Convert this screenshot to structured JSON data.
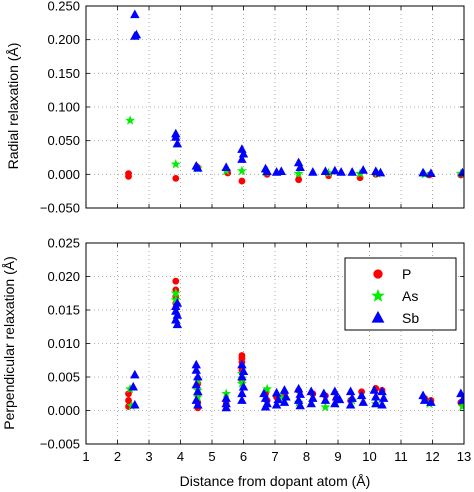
{
  "chart_data": [
    {
      "type": "scatter",
      "title": "",
      "xlabel": "",
      "ylabel": "Radial relaxation (Å)",
      "xlim": [
        1,
        13
      ],
      "ylim": [
        -0.05,
        0.25
      ],
      "xticks": [
        1,
        2,
        3,
        4,
        5,
        6,
        7,
        8,
        9,
        10,
        11,
        12,
        13
      ],
      "yticks": [
        "−0.050",
        "0.000",
        "0.050",
        "0.100",
        "0.150",
        "0.200",
        "0.250"
      ],
      "ytick_values": [
        -0.05,
        0.0,
        0.05,
        0.1,
        0.15,
        0.2,
        0.25
      ],
      "grid": true,
      "series": [
        {
          "name": "P",
          "marker": "circle",
          "color": "#ff0000",
          "points": [
            [
              2.35,
              0.001
            ],
            [
              2.35,
              -0.003
            ],
            [
              3.85,
              -0.006
            ],
            [
              4.55,
              0.01
            ],
            [
              5.5,
              0.002
            ],
            [
              5.95,
              -0.01
            ],
            [
              6.75,
              0.0
            ],
            [
              7.75,
              -0.008
            ],
            [
              8.7,
              -0.002
            ],
            [
              9.7,
              -0.005
            ],
            [
              10.2,
              0.0
            ],
            [
              11.9,
              -0.001
            ],
            [
              12.9,
              -0.001
            ]
          ]
        },
        {
          "name": "As",
          "marker": "star",
          "color": "#00ee00",
          "points": [
            [
              2.4,
              0.08
            ],
            [
              3.85,
              0.015
            ],
            [
              4.55,
              0.009
            ],
            [
              5.45,
              0.005
            ],
            [
              5.95,
              0.005
            ],
            [
              6.7,
              0.003
            ],
            [
              7.75,
              0.001
            ],
            [
              8.7,
              0.002
            ],
            [
              9.7,
              0.001
            ],
            [
              10.25,
              0.001
            ],
            [
              11.75,
              0.0
            ],
            [
              12.9,
              0.001
            ]
          ]
        },
        {
          "name": "Sb",
          "marker": "triangle",
          "color": "#0000ff",
          "points": [
            [
              2.55,
              0.237
            ],
            [
              2.6,
              0.207
            ],
            [
              2.55,
              0.205
            ],
            [
              3.85,
              0.06
            ],
            [
              3.85,
              0.055
            ],
            [
              3.9,
              0.045
            ],
            [
              4.5,
              0.012
            ],
            [
              4.55,
              0.009
            ],
            [
              5.45,
              0.01
            ],
            [
              5.95,
              0.037
            ],
            [
              6.0,
              0.03
            ],
            [
              5.95,
              0.022
            ],
            [
              6.7,
              0.008
            ],
            [
              6.75,
              0.004
            ],
            [
              7.05,
              0.003
            ],
            [
              7.2,
              0.004
            ],
            [
              7.75,
              0.017
            ],
            [
              7.8,
              0.01
            ],
            [
              8.2,
              0.003
            ],
            [
              8.6,
              0.004
            ],
            [
              8.9,
              0.005
            ],
            [
              9.1,
              0.003
            ],
            [
              9.45,
              0.003
            ],
            [
              9.8,
              0.006
            ],
            [
              10.2,
              0.004
            ],
            [
              10.35,
              0.002
            ],
            [
              11.7,
              0.002
            ],
            [
              11.95,
              0.001
            ],
            [
              12.95,
              0.002
            ]
          ]
        }
      ]
    },
    {
      "type": "scatter",
      "title": "",
      "xlabel": "Distance from dopant atom (Å)",
      "ylabel": "Perpendicular relaxation (Å)",
      "xlim": [
        1,
        13
      ],
      "ylim": [
        -0.005,
        0.025
      ],
      "xticks": [
        1,
        2,
        3,
        4,
        5,
        6,
        7,
        8,
        9,
        10,
        11,
        12,
        13
      ],
      "yticks": [
        "−0.005",
        "0.000",
        "0.005",
        "0.010",
        "0.015",
        "0.020",
        "0.025"
      ],
      "ytick_values": [
        -0.005,
        0.0,
        0.005,
        0.01,
        0.015,
        0.02,
        0.025
      ],
      "grid": true,
      "legend": {
        "position": "top-right",
        "entries": [
          "P",
          "As",
          "Sb"
        ]
      },
      "series": [
        {
          "name": "P",
          "marker": "circle",
          "color": "#ff0000",
          "points": [
            [
              2.35,
              0.0025
            ],
            [
              2.35,
              0.0015
            ],
            [
              2.35,
              0.0006
            ],
            [
              3.85,
              0.0193
            ],
            [
              3.85,
              0.018
            ],
            [
              3.85,
              0.017
            ],
            [
              3.85,
              0.016
            ],
            [
              4.55,
              0.004
            ],
            [
              4.55,
              0.0025
            ],
            [
              4.55,
              0.0012
            ],
            [
              4.55,
              0.0004
            ],
            [
              5.45,
              0.001
            ],
            [
              5.95,
              0.0082
            ],
            [
              5.95,
              0.0078
            ],
            [
              5.95,
              0.0072
            ],
            [
              5.95,
              0.006
            ],
            [
              5.95,
              0.0045
            ],
            [
              6.7,
              0.0025
            ],
            [
              6.75,
              0.0015
            ],
            [
              7.05,
              0.002
            ],
            [
              7.3,
              0.0025
            ],
            [
              7.75,
              0.003
            ],
            [
              8.2,
              0.0025
            ],
            [
              8.6,
              0.0022
            ],
            [
              8.95,
              0.0018
            ],
            [
              9.4,
              0.0015
            ],
            [
              9.75,
              0.0028
            ],
            [
              10.2,
              0.0033
            ],
            [
              10.4,
              0.003
            ],
            [
              11.75,
              0.0018
            ],
            [
              11.95,
              0.0015
            ],
            [
              12.9,
              0.0012
            ]
          ]
        },
        {
          "name": "As",
          "marker": "star",
          "color": "#00ee00",
          "points": [
            [
              2.4,
              0.0032
            ],
            [
              2.45,
              0.0007
            ],
            [
              3.85,
              0.0175
            ],
            [
              3.85,
              0.0165
            ],
            [
              4.55,
              0.0045
            ],
            [
              4.55,
              0.003
            ],
            [
              4.55,
              0.002
            ],
            [
              5.45,
              0.0025
            ],
            [
              5.95,
              0.0055
            ],
            [
              5.95,
              0.0048
            ],
            [
              5.95,
              0.004
            ],
            [
              6.75,
              0.0032
            ],
            [
              7.2,
              0.002
            ],
            [
              7.75,
              0.0012
            ],
            [
              8.6,
              0.0005
            ],
            [
              9.45,
              0.0015
            ],
            [
              10.2,
              0.001
            ],
            [
              11.9,
              0.001
            ],
            [
              12.95,
              0.0006
            ]
          ]
        },
        {
          "name": "Sb",
          "marker": "triangle",
          "color": "#0000ff",
          "points": [
            [
              2.55,
              0.0053
            ],
            [
              2.5,
              0.0035
            ],
            [
              2.55,
              0.0008
            ],
            [
              3.85,
              0.0148
            ],
            [
              3.9,
              0.0142
            ],
            [
              3.85,
              0.0135
            ],
            [
              3.9,
              0.0128
            ],
            [
              3.85,
              0.0155
            ],
            [
              3.9,
              0.016
            ],
            [
              4.5,
              0.0068
            ],
            [
              4.5,
              0.006
            ],
            [
              4.55,
              0.005
            ],
            [
              4.5,
              0.0038
            ],
            [
              4.55,
              0.0028
            ],
            [
              4.5,
              0.0015
            ],
            [
              4.55,
              0.0008
            ],
            [
              5.45,
              0.0018
            ],
            [
              5.45,
              0.001
            ],
            [
              5.45,
              0.0004
            ],
            [
              5.95,
              0.0068
            ],
            [
              6.0,
              0.0058
            ],
            [
              5.95,
              0.005
            ],
            [
              6.0,
              0.0035
            ],
            [
              5.95,
              0.0025
            ],
            [
              5.95,
              0.0015
            ],
            [
              6.65,
              0.0025
            ],
            [
              6.7,
              0.0018
            ],
            [
              6.75,
              0.001
            ],
            [
              6.7,
              0.0005
            ],
            [
              7.05,
              0.0026
            ],
            [
              7.1,
              0.0016
            ],
            [
              7.05,
              0.0008
            ],
            [
              7.3,
              0.003
            ],
            [
              7.35,
              0.002
            ],
            [
              7.3,
              0.0012
            ],
            [
              7.75,
              0.0032
            ],
            [
              7.8,
              0.0024
            ],
            [
              7.75,
              0.0015
            ],
            [
              7.8,
              0.0007
            ],
            [
              8.15,
              0.0028
            ],
            [
              8.2,
              0.0018
            ],
            [
              8.15,
              0.001
            ],
            [
              8.55,
              0.0025
            ],
            [
              8.6,
              0.0015
            ],
            [
              8.9,
              0.0028
            ],
            [
              8.95,
              0.002
            ],
            [
              8.9,
              0.001
            ],
            [
              9.05,
              0.0016
            ],
            [
              9.4,
              0.0028
            ],
            [
              9.45,
              0.0018
            ],
            [
              9.4,
              0.0008
            ],
            [
              9.75,
              0.0022
            ],
            [
              9.8,
              0.0012
            ],
            [
              10.15,
              0.003
            ],
            [
              10.2,
              0.002
            ],
            [
              10.2,
              0.001
            ],
            [
              10.4,
              0.0028
            ],
            [
              10.45,
              0.0018
            ],
            [
              10.4,
              0.0008
            ],
            [
              11.7,
              0.0022
            ],
            [
              11.75,
              0.0015
            ],
            [
              11.95,
              0.0012
            ],
            [
              12.9,
              0.0025
            ],
            [
              12.95,
              0.0015
            ]
          ]
        }
      ]
    }
  ]
}
